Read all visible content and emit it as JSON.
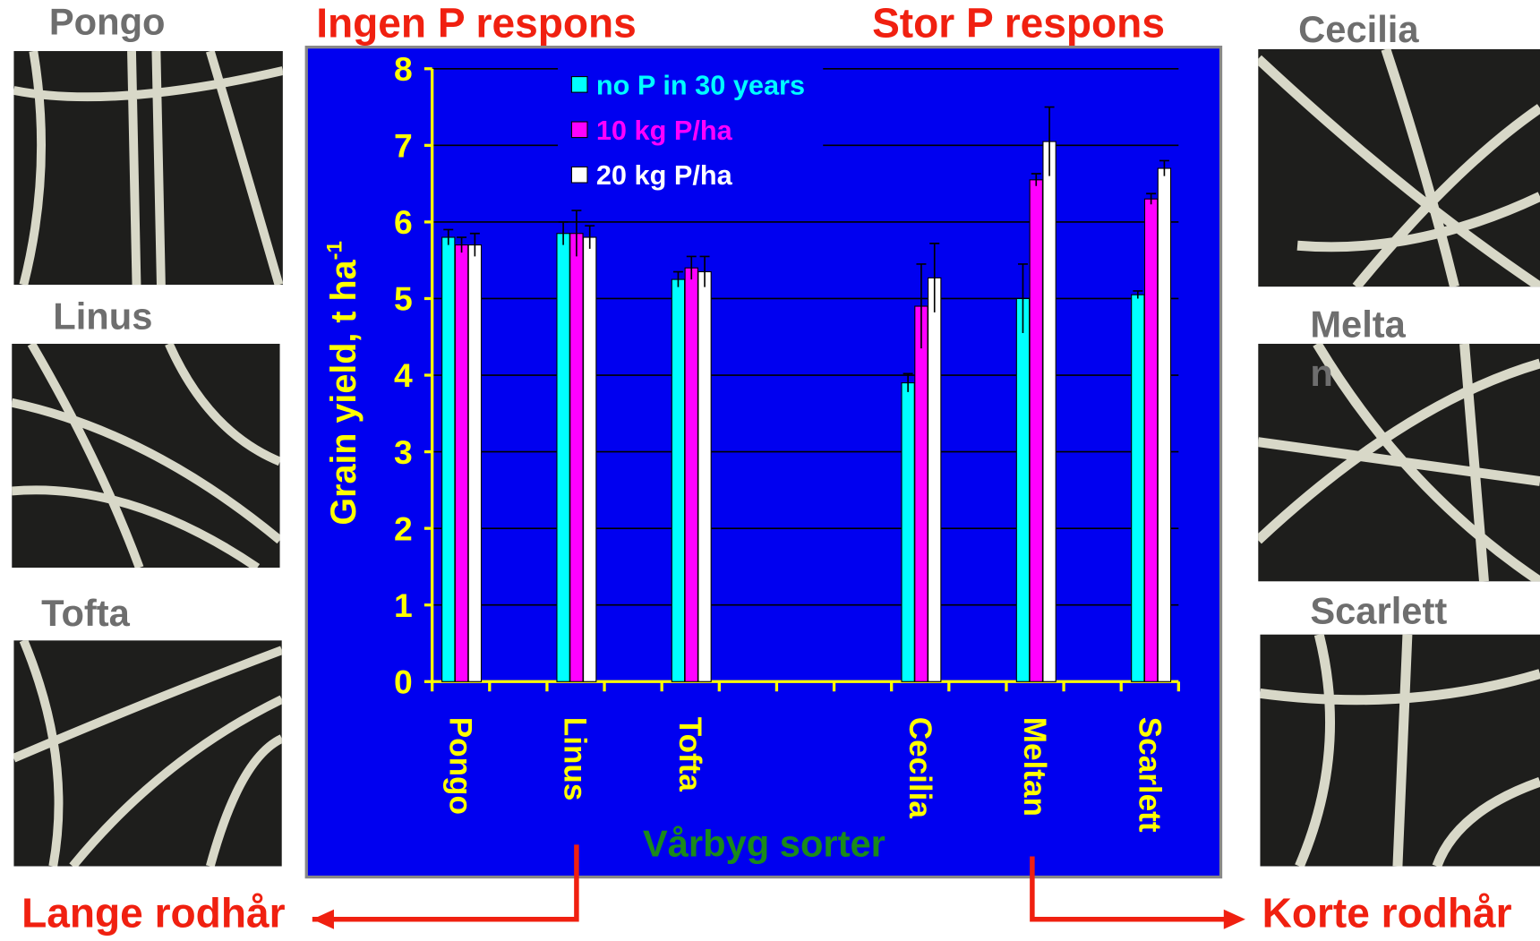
{
  "chart_data": {
    "type": "bar",
    "title_left": "Ingen P respons",
    "title_right": "Stor P respons",
    "y_label": "Grain yield, t ha",
    "y_label_superscript": "-1",
    "x_label": "Vårbyg sorter",
    "categories": [
      "Pongo",
      "Linus",
      "Tofta",
      null,
      "Cecilia",
      "Meltan",
      "Scarlett"
    ],
    "series": [
      {
        "name": "no P in 30 years",
        "color": "#00ffff",
        "values": [
          5.8,
          5.85,
          5.25,
          null,
          3.9,
          5.0,
          5.05
        ],
        "errors": [
          0.1,
          0.15,
          0.1,
          null,
          0.12,
          0.45,
          0.05
        ]
      },
      {
        "name": "10 kg P/ha",
        "color": "#ff00ff",
        "values": [
          5.7,
          5.85,
          5.4,
          null,
          4.9,
          6.55,
          6.3
        ],
        "errors": [
          0.1,
          0.3,
          0.15,
          null,
          0.55,
          0.08,
          0.07
        ]
      },
      {
        "name": "20 kg P/ha",
        "color": "#ffffff",
        "values": [
          5.7,
          5.8,
          5.35,
          null,
          5.27,
          7.05,
          6.7
        ],
        "errors": [
          0.15,
          0.15,
          0.2,
          null,
          0.45,
          0.45,
          0.1
        ]
      }
    ],
    "ylim": [
      0,
      8
    ],
    "yticks": [
      0,
      1,
      2,
      3,
      4,
      5,
      6,
      7,
      8
    ],
    "grid": true
  },
  "photos": {
    "left": [
      "Pongo",
      "Linus",
      "Tofta"
    ],
    "right": [
      "Cecilia",
      "Meltan",
      "Scarlett"
    ]
  },
  "footer": {
    "left": "Lange rodhår",
    "right": "Korte rodhår"
  }
}
